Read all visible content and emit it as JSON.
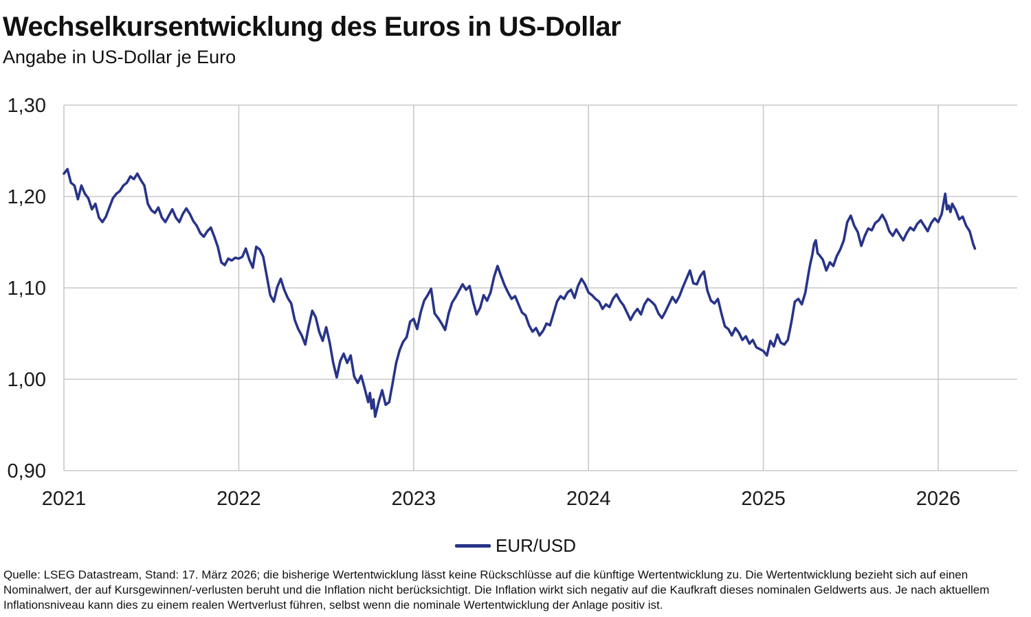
{
  "header": {
    "title": "Wechselkursentwicklung des Euros in US-Dollar",
    "subtitle": "Angabe in US-Dollar je Euro"
  },
  "legend": {
    "label": "EUR/USD"
  },
  "footer": {
    "text": "Quelle: LSEG Datastream, Stand: 17. März 2026; die bisherige Wertentwicklung lässt keine Rückschlüsse auf die künftige Wertentwicklung zu. Die Wertentwicklung bezieht sich auf einen Nominalwert, der auf Kursgewinnen/-verlusten beruht und die Inflation nicht berücksichtigt. Die Inflation wirkt sich negativ auf die Kaufkraft dieses nominalen Geldwerts aus. Je nach aktuellem Inflationsniveau kann dies zu einem realen Wertverlust führen, selbst wenn die nominale Wertentwicklung der Anlage positiv ist."
  },
  "colors": {
    "line": "#283488",
    "grid": "#c8c8c8",
    "text": "#1a1a1a"
  },
  "chart_data": {
    "type": "line",
    "title": "Wechselkursentwicklung des Euros in US-Dollar",
    "xlabel": "",
    "ylabel": "US-Dollar je Euro",
    "xlim": [
      2021.0,
      2026.452
    ],
    "ylim": [
      0.9,
      1.3
    ],
    "x_ticks": [
      2021,
      2022,
      2023,
      2024,
      2025,
      2026
    ],
    "x_tick_labels": [
      "2021",
      "2022",
      "2023",
      "2024",
      "2025",
      "2026"
    ],
    "y_ticks": [
      0.9,
      1.0,
      1.1,
      1.2,
      1.3
    ],
    "y_tick_labels": [
      "0,90",
      "1,00",
      "1,10",
      "1,20",
      "1,30"
    ],
    "grid": true,
    "legend_position": "bottom-center",
    "series": [
      {
        "name": "EUR/USD",
        "points": [
          [
            2021.0,
            1.225
          ],
          [
            2021.02,
            1.23
          ],
          [
            2021.04,
            1.215
          ],
          [
            2021.06,
            1.212
          ],
          [
            2021.08,
            1.197
          ],
          [
            2021.1,
            1.212
          ],
          [
            2021.12,
            1.203
          ],
          [
            2021.14,
            1.198
          ],
          [
            2021.16,
            1.186
          ],
          [
            2021.18,
            1.192
          ],
          [
            2021.2,
            1.177
          ],
          [
            2021.22,
            1.172
          ],
          [
            2021.24,
            1.178
          ],
          [
            2021.26,
            1.188
          ],
          [
            2021.28,
            1.198
          ],
          [
            2021.3,
            1.203
          ],
          [
            2021.32,
            1.206
          ],
          [
            2021.34,
            1.212
          ],
          [
            2021.36,
            1.215
          ],
          [
            2021.38,
            1.222
          ],
          [
            2021.4,
            1.219
          ],
          [
            2021.42,
            1.225
          ],
          [
            2021.44,
            1.218
          ],
          [
            2021.46,
            1.212
          ],
          [
            2021.48,
            1.192
          ],
          [
            2021.5,
            1.185
          ],
          [
            2021.52,
            1.182
          ],
          [
            2021.54,
            1.188
          ],
          [
            2021.56,
            1.177
          ],
          [
            2021.58,
            1.172
          ],
          [
            2021.6,
            1.179
          ],
          [
            2021.62,
            1.186
          ],
          [
            2021.64,
            1.177
          ],
          [
            2021.66,
            1.172
          ],
          [
            2021.68,
            1.181
          ],
          [
            2021.7,
            1.187
          ],
          [
            2021.72,
            1.181
          ],
          [
            2021.74,
            1.173
          ],
          [
            2021.76,
            1.168
          ],
          [
            2021.78,
            1.16
          ],
          [
            2021.8,
            1.156
          ],
          [
            2021.82,
            1.162
          ],
          [
            2021.84,
            1.166
          ],
          [
            2021.86,
            1.156
          ],
          [
            2021.88,
            1.145
          ],
          [
            2021.9,
            1.128
          ],
          [
            2021.92,
            1.125
          ],
          [
            2021.94,
            1.132
          ],
          [
            2021.96,
            1.13
          ],
          [
            2021.98,
            1.133
          ],
          [
            2022.0,
            1.132
          ],
          [
            2022.02,
            1.134
          ],
          [
            2022.04,
            1.143
          ],
          [
            2022.06,
            1.131
          ],
          [
            2022.08,
            1.122
          ],
          [
            2022.1,
            1.145
          ],
          [
            2022.12,
            1.142
          ],
          [
            2022.14,
            1.134
          ],
          [
            2022.16,
            1.113
          ],
          [
            2022.18,
            1.092
          ],
          [
            2022.2,
            1.085
          ],
          [
            2022.22,
            1.101
          ],
          [
            2022.24,
            1.11
          ],
          [
            2022.26,
            1.098
          ],
          [
            2022.28,
            1.089
          ],
          [
            2022.3,
            1.083
          ],
          [
            2022.32,
            1.065
          ],
          [
            2022.34,
            1.055
          ],
          [
            2022.36,
            1.048
          ],
          [
            2022.38,
            1.038
          ],
          [
            2022.4,
            1.058
          ],
          [
            2022.42,
            1.075
          ],
          [
            2022.44,
            1.068
          ],
          [
            2022.46,
            1.052
          ],
          [
            2022.48,
            1.042
          ],
          [
            2022.5,
            1.057
          ],
          [
            2022.52,
            1.04
          ],
          [
            2022.54,
            1.018
          ],
          [
            2022.56,
            1.002
          ],
          [
            2022.58,
            1.02
          ],
          [
            2022.6,
            1.028
          ],
          [
            2022.62,
            1.018
          ],
          [
            2022.64,
            1.026
          ],
          [
            2022.66,
            1.003
          ],
          [
            2022.68,
            0.996
          ],
          [
            2022.7,
            1.004
          ],
          [
            2022.72,
            0.99
          ],
          [
            2022.74,
            0.975
          ],
          [
            2022.75,
            0.985
          ],
          [
            2022.76,
            0.968
          ],
          [
            2022.77,
            0.978
          ],
          [
            2022.78,
            0.959
          ],
          [
            2022.8,
            0.975
          ],
          [
            2022.82,
            0.988
          ],
          [
            2022.84,
            0.972
          ],
          [
            2022.86,
            0.975
          ],
          [
            2022.88,
            0.996
          ],
          [
            2022.9,
            1.018
          ],
          [
            2022.92,
            1.032
          ],
          [
            2022.94,
            1.041
          ],
          [
            2022.96,
            1.046
          ],
          [
            2022.98,
            1.063
          ],
          [
            2023.0,
            1.066
          ],
          [
            2023.02,
            1.055
          ],
          [
            2023.04,
            1.073
          ],
          [
            2023.06,
            1.086
          ],
          [
            2023.08,
            1.092
          ],
          [
            2023.1,
            1.099
          ],
          [
            2023.12,
            1.072
          ],
          [
            2023.14,
            1.067
          ],
          [
            2023.16,
            1.061
          ],
          [
            2023.18,
            1.054
          ],
          [
            2023.2,
            1.072
          ],
          [
            2023.22,
            1.084
          ],
          [
            2023.24,
            1.09
          ],
          [
            2023.26,
            1.097
          ],
          [
            2023.28,
            1.104
          ],
          [
            2023.3,
            1.098
          ],
          [
            2023.32,
            1.102
          ],
          [
            2023.34,
            1.085
          ],
          [
            2023.36,
            1.071
          ],
          [
            2023.38,
            1.078
          ],
          [
            2023.4,
            1.092
          ],
          [
            2023.42,
            1.086
          ],
          [
            2023.44,
            1.095
          ],
          [
            2023.46,
            1.112
          ],
          [
            2023.48,
            1.124
          ],
          [
            2023.5,
            1.113
          ],
          [
            2023.52,
            1.103
          ],
          [
            2023.54,
            1.095
          ],
          [
            2023.56,
            1.088
          ],
          [
            2023.58,
            1.091
          ],
          [
            2023.6,
            1.082
          ],
          [
            2023.62,
            1.073
          ],
          [
            2023.64,
            1.07
          ],
          [
            2023.66,
            1.059
          ],
          [
            2023.68,
            1.052
          ],
          [
            2023.7,
            1.056
          ],
          [
            2023.72,
            1.048
          ],
          [
            2023.74,
            1.053
          ],
          [
            2023.76,
            1.061
          ],
          [
            2023.78,
            1.059
          ],
          [
            2023.8,
            1.072
          ],
          [
            2023.82,
            1.085
          ],
          [
            2023.84,
            1.091
          ],
          [
            2023.86,
            1.088
          ],
          [
            2023.88,
            1.095
          ],
          [
            2023.9,
            1.098
          ],
          [
            2023.92,
            1.089
          ],
          [
            2023.94,
            1.102
          ],
          [
            2023.96,
            1.11
          ],
          [
            2023.98,
            1.104
          ],
          [
            2024.0,
            1.095
          ],
          [
            2024.02,
            1.092
          ],
          [
            2024.04,
            1.088
          ],
          [
            2024.06,
            1.085
          ],
          [
            2024.08,
            1.077
          ],
          [
            2024.1,
            1.082
          ],
          [
            2024.12,
            1.079
          ],
          [
            2024.14,
            1.088
          ],
          [
            2024.16,
            1.093
          ],
          [
            2024.18,
            1.086
          ],
          [
            2024.2,
            1.081
          ],
          [
            2024.22,
            1.073
          ],
          [
            2024.24,
            1.065
          ],
          [
            2024.26,
            1.072
          ],
          [
            2024.28,
            1.077
          ],
          [
            2024.3,
            1.071
          ],
          [
            2024.32,
            1.082
          ],
          [
            2024.34,
            1.088
          ],
          [
            2024.36,
            1.085
          ],
          [
            2024.38,
            1.081
          ],
          [
            2024.4,
            1.072
          ],
          [
            2024.42,
            1.067
          ],
          [
            2024.44,
            1.074
          ],
          [
            2024.46,
            1.082
          ],
          [
            2024.48,
            1.09
          ],
          [
            2024.5,
            1.084
          ],
          [
            2024.52,
            1.091
          ],
          [
            2024.54,
            1.101
          ],
          [
            2024.56,
            1.11
          ],
          [
            2024.58,
            1.119
          ],
          [
            2024.6,
            1.105
          ],
          [
            2024.62,
            1.104
          ],
          [
            2024.64,
            1.113
          ],
          [
            2024.66,
            1.118
          ],
          [
            2024.68,
            1.097
          ],
          [
            2024.7,
            1.086
          ],
          [
            2024.72,
            1.083
          ],
          [
            2024.74,
            1.088
          ],
          [
            2024.76,
            1.072
          ],
          [
            2024.78,
            1.058
          ],
          [
            2024.8,
            1.055
          ],
          [
            2024.82,
            1.048
          ],
          [
            2024.84,
            1.056
          ],
          [
            2024.86,
            1.051
          ],
          [
            2024.88,
            1.043
          ],
          [
            2024.9,
            1.047
          ],
          [
            2024.92,
            1.039
          ],
          [
            2024.94,
            1.043
          ],
          [
            2024.96,
            1.035
          ],
          [
            2025.0,
            1.031
          ],
          [
            2025.02,
            1.026
          ],
          [
            2025.04,
            1.042
          ],
          [
            2025.06,
            1.036
          ],
          [
            2025.08,
            1.049
          ],
          [
            2025.1,
            1.04
          ],
          [
            2025.12,
            1.038
          ],
          [
            2025.14,
            1.043
          ],
          [
            2025.16,
            1.062
          ],
          [
            2025.18,
            1.085
          ],
          [
            2025.2,
            1.088
          ],
          [
            2025.22,
            1.082
          ],
          [
            2025.24,
            1.095
          ],
          [
            2025.26,
            1.118
          ],
          [
            2025.27,
            1.128
          ],
          [
            2025.28,
            1.136
          ],
          [
            2025.29,
            1.148
          ],
          [
            2025.3,
            1.152
          ],
          [
            2025.31,
            1.138
          ],
          [
            2025.32,
            1.136
          ],
          [
            2025.34,
            1.131
          ],
          [
            2025.36,
            1.119
          ],
          [
            2025.38,
            1.128
          ],
          [
            2025.4,
            1.124
          ],
          [
            2025.42,
            1.135
          ],
          [
            2025.44,
            1.142
          ],
          [
            2025.46,
            1.152
          ],
          [
            2025.48,
            1.172
          ],
          [
            2025.5,
            1.179
          ],
          [
            2025.52,
            1.168
          ],
          [
            2025.54,
            1.161
          ],
          [
            2025.56,
            1.146
          ],
          [
            2025.58,
            1.157
          ],
          [
            2025.6,
            1.165
          ],
          [
            2025.62,
            1.163
          ],
          [
            2025.64,
            1.171
          ],
          [
            2025.66,
            1.174
          ],
          [
            2025.68,
            1.18
          ],
          [
            2025.7,
            1.173
          ],
          [
            2025.72,
            1.162
          ],
          [
            2025.74,
            1.157
          ],
          [
            2025.76,
            1.164
          ],
          [
            2025.78,
            1.158
          ],
          [
            2025.8,
            1.152
          ],
          [
            2025.82,
            1.16
          ],
          [
            2025.84,
            1.166
          ],
          [
            2025.86,
            1.163
          ],
          [
            2025.88,
            1.17
          ],
          [
            2025.9,
            1.174
          ],
          [
            2025.92,
            1.168
          ],
          [
            2025.94,
            1.162
          ],
          [
            2025.96,
            1.171
          ],
          [
            2025.98,
            1.176
          ],
          [
            2026.0,
            1.172
          ],
          [
            2026.02,
            1.181
          ],
          [
            2026.03,
            1.192
          ],
          [
            2026.04,
            1.203
          ],
          [
            2026.05,
            1.186
          ],
          [
            2026.06,
            1.19
          ],
          [
            2026.07,
            1.183
          ],
          [
            2026.08,
            1.192
          ],
          [
            2026.1,
            1.185
          ],
          [
            2026.12,
            1.175
          ],
          [
            2026.14,
            1.178
          ],
          [
            2026.16,
            1.168
          ],
          [
            2026.18,
            1.162
          ],
          [
            2026.2,
            1.148
          ],
          [
            2026.21,
            1.143
          ]
        ]
      }
    ]
  }
}
